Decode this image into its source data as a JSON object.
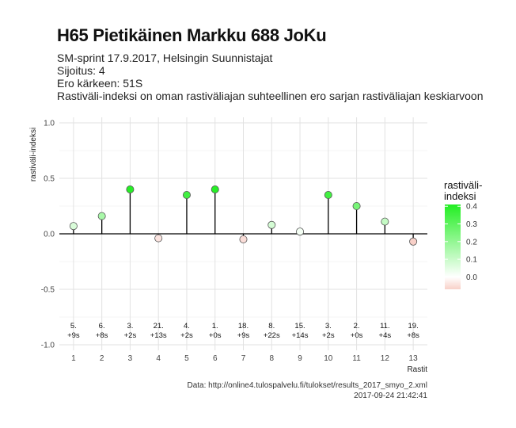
{
  "header": {
    "title": "H65 Pietikäinen Markku 688 JoKu",
    "subtitle_lines": [
      "SM-sprint 17.9.2017, Helsingin Suunnistajat",
      "Sijoitus: 4",
      "Ero kärkeen: 51S",
      "Rastiväli-indeksi on oman rastiväliajan suhteellinen ero sarjan rastiväliajan keskiarvoon"
    ]
  },
  "caption": {
    "source": "Data: http://online4.tulospalvelu.fi/tulokset/results_2017_smyo_2.xml",
    "timestamp": "2017-09-24 21:42:41"
  },
  "chart_data": {
    "type": "lollipop",
    "xlabel": "Rastit",
    "ylabel": "rastiväli-indeksi",
    "ylim": [
      -1.05,
      1.05
    ],
    "yticks": [
      -1.0,
      -0.5,
      0.0,
      0.5,
      1.0
    ],
    "ytick_labels": [
      "-1.0",
      "-0.5",
      "0.0",
      "0.5",
      "1.0"
    ],
    "x": [
      1,
      2,
      3,
      4,
      5,
      6,
      7,
      8,
      9,
      10,
      11,
      12,
      13
    ],
    "values": [
      0.07,
      0.16,
      0.4,
      -0.04,
      0.35,
      0.4,
      -0.05,
      0.08,
      0.02,
      0.35,
      0.25,
      0.11,
      -0.07
    ],
    "rank_labels": [
      "5.",
      "6.",
      "3.",
      "21.",
      "4.",
      "1.",
      "18.",
      "8.",
      "15.",
      "3.",
      "2.",
      "11.",
      "19."
    ],
    "diff_labels": [
      "+9s",
      "+8s",
      "+2s",
      "+13s",
      "+2s",
      "+0s",
      "+9s",
      "+22s",
      "+14s",
      "+2s",
      "+0s",
      "+4s",
      "+8s"
    ],
    "grid": true,
    "legend": {
      "title_lines": [
        "rastiväli-",
        "indeksi"
      ],
      "placement": "right",
      "ticks": [
        0.4,
        0.3,
        0.2,
        0.1,
        0.0
      ],
      "tick_labels": [
        "0.4",
        "0.3",
        "0.2",
        "0.1",
        "0.0"
      ],
      "range": [
        -0.07,
        0.41
      ]
    },
    "colors": {
      "high": "#22ee22",
      "mid": "#ffffff",
      "low": "#f8d0c8",
      "stem": "#000000",
      "grid": "#e2e2e2",
      "zero_line": "#000000"
    }
  }
}
